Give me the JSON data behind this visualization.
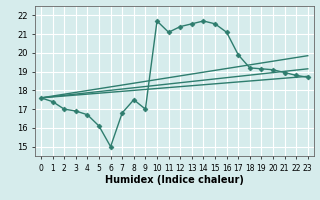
{
  "xlabel": "Humidex (Indice chaleur)",
  "ylabel": "",
  "xlim": [
    -0.5,
    23.5
  ],
  "ylim": [
    14.5,
    22.5
  ],
  "yticks": [
    15,
    16,
    17,
    18,
    19,
    20,
    21,
    22
  ],
  "xticks": [
    0,
    1,
    2,
    3,
    4,
    5,
    6,
    7,
    8,
    9,
    10,
    11,
    12,
    13,
    14,
    15,
    16,
    17,
    18,
    19,
    20,
    21,
    22,
    23
  ],
  "background_color": "#d6ecec",
  "grid_color": "#ffffff",
  "line_color": "#2e7d6e",
  "main_line": {
    "x": [
      0,
      1,
      2,
      3,
      4,
      5,
      6,
      7,
      8,
      9,
      10,
      11,
      12,
      13,
      14,
      15,
      16,
      17,
      18,
      19,
      20,
      21,
      22,
      23
    ],
    "y": [
      17.6,
      17.4,
      17.0,
      16.9,
      16.7,
      16.1,
      15.0,
      16.8,
      17.5,
      17.0,
      21.7,
      21.1,
      21.4,
      21.55,
      21.7,
      21.55,
      21.1,
      19.9,
      19.2,
      19.15,
      19.1,
      18.95,
      18.8,
      18.7
    ]
  },
  "straight_lines": [
    {
      "x0": 0,
      "y0": 17.6,
      "x1": 23,
      "y1": 18.75
    },
    {
      "x0": 0,
      "y0": 17.6,
      "x1": 23,
      "y1": 19.15
    },
    {
      "x0": 0,
      "y0": 17.6,
      "x1": 23,
      "y1": 19.85
    }
  ]
}
